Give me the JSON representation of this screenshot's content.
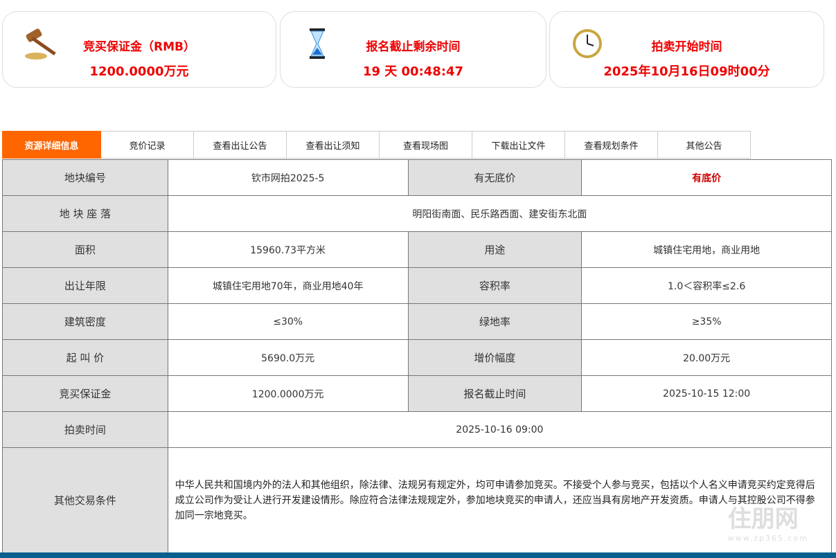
{
  "cards": [
    {
      "icon": "gavel-icon",
      "title": "竞买保证金（RMB）",
      "value": "1200.0000万元"
    },
    {
      "icon": "hourglass-icon",
      "title": "报名截止剩余时间",
      "value": "19 天 00:48:47"
    },
    {
      "icon": "clock-icon",
      "title": "拍卖开始时间",
      "value": "2025年10月16日09时00分"
    }
  ],
  "tabs": [
    "资源详细信息",
    "竞价记录",
    "查看出让公告",
    "查看出让须知",
    "查看现场图",
    "下载出让文件",
    "查看规划条件",
    "其他公告"
  ],
  "rows": [
    {
      "k1": "地块编号",
      "v1": "钦市网拍2025-5",
      "k2": "有无底价",
      "v2": "有底价"
    },
    {
      "k1": "地 块 座 落",
      "v1": "明阳街南面、民乐路西面、建安街东北面"
    },
    {
      "k1": "面积",
      "v1": "15960.73平方米",
      "k2": "用途",
      "v2": "城镇住宅用地，商业用地"
    },
    {
      "k1": "出让年限",
      "v1": "城镇住宅用地70年，商业用地40年",
      "k2": "容积率",
      "v2": "1.0＜容积率≤2.6"
    },
    {
      "k1": "建筑密度",
      "v1": "≤30%",
      "k2": "绿地率",
      "v2": "≥35%"
    },
    {
      "k1": "起 叫 价",
      "v1": "5690.0万元",
      "k2": "增价幅度",
      "v2": "20.00万元"
    },
    {
      "k1": "竞买保证金",
      "v1": "1200.0000万元",
      "k2": "报名截止时间",
      "v2": "2025-10-15 12:00"
    },
    {
      "k1": "拍卖时间",
      "v1": "2025-10-16 09:00"
    },
    {
      "k1": "其他交易条件",
      "v1": "中华人民共和国境内外的法人和其他组织，除法律、法规另有规定外，均可申请参加竞买。不接受个人参与竞买，包括以个人名义申请竞买约定竞得后成立公司作为受让人进行开发建设情形。除应符合法律法规规定外，参加地块竞买的申请人，还应当具有房地产开发资质。申请人与其控股公司不得参加同一宗地竞买。"
    }
  ],
  "watermark": {
    "name": "住朋网",
    "url": "www.zp365.com"
  },
  "colors": {
    "accent": "#ff6600",
    "red": "#ee0000",
    "bar": "#0b5f8f"
  }
}
